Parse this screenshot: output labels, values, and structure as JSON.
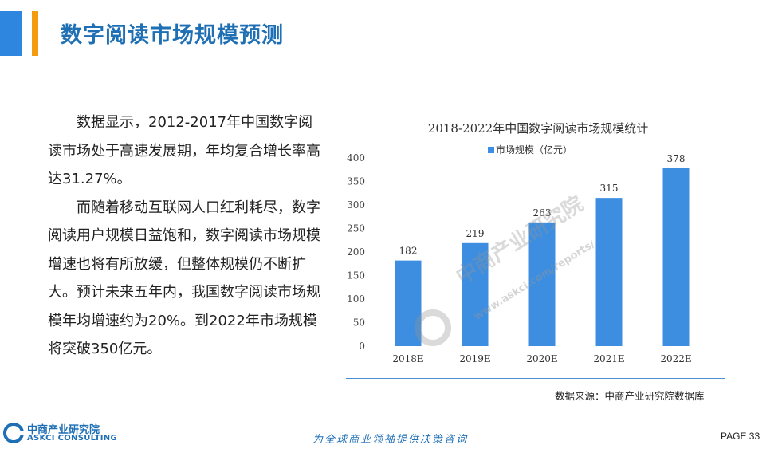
{
  "header": {
    "title": "数字阅读市场规模预测"
  },
  "body": {
    "paragraphs": [
      "数据显示，2012-2017年中国数字阅读市场处于高速发展期，年均复合增长率高达31.27%。",
      "而随着移动互联网人口红利耗尽，数字阅读用户规模日益饱和，数字阅读市场规模增速也将有所放缓，但整体规模仍不断扩大。预计未来五年内，我国数字阅读市场规模年均增速约为20%。到2022年市场规模将突破350亿元。"
    ]
  },
  "chart_data": {
    "type": "bar",
    "title": "2018-2022年中国数字阅读市场规模统计",
    "categories": [
      "2018E",
      "2019E",
      "2020E",
      "2021E",
      "2022E"
    ],
    "series": [
      {
        "name": "市场规模（亿元）",
        "values": [
          182,
          219,
          263,
          315,
          378
        ]
      }
    ],
    "ylim": [
      0,
      400
    ],
    "yticks": [
      0,
      50,
      100,
      150,
      200,
      250,
      300,
      350,
      400
    ],
    "legend": "top",
    "grid": false,
    "color": "#3d8ee0"
  },
  "source": "数据来源：中商产业研究院数据库",
  "watermark": {
    "cn": "中商产业研究院",
    "url": "www.askci.com/reports/"
  },
  "footer": {
    "logo_cn": "中商产业研究院",
    "logo_en": "ASKCI CONSULTING",
    "slogan": "为全球商业领袖提供决策咨询",
    "page": "PAGE  33"
  }
}
